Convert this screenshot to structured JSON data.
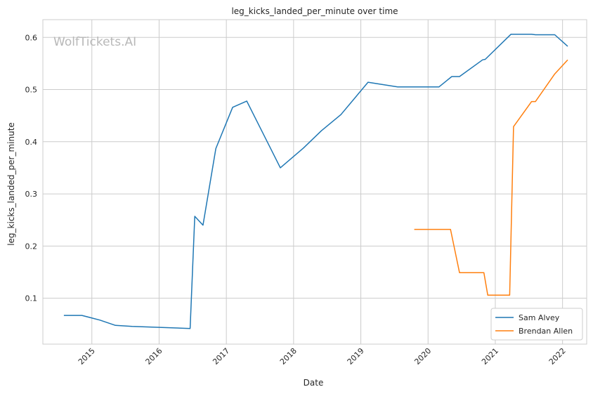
{
  "chart_data": {
    "type": "line",
    "title": "leg_kicks_landed_per_minute over time",
    "xlabel": "Date",
    "ylabel": "leg_kicks_landed_per_minute",
    "watermark": "WolfTickets.AI",
    "grid": true,
    "legend_position": "bottom-right",
    "x_ticks": [
      "2015",
      "2016",
      "2017",
      "2018",
      "2019",
      "2020",
      "2021",
      "2022"
    ],
    "y_ticks": [
      "0.1",
      "0.2",
      "0.3",
      "0.4",
      "0.5",
      "0.6"
    ],
    "xlim": [
      "2014-04-10",
      "2022-05-12"
    ],
    "ylim": [
      0.012,
      0.634
    ],
    "series": [
      {
        "name": "Sam Alvey",
        "color": "#1f77b4",
        "points": [
          [
            "2014-08-02",
            0.067
          ],
          [
            "2014-11-08",
            0.067
          ],
          [
            "2015-02-14",
            0.058
          ],
          [
            "2015-05-09",
            0.048
          ],
          [
            "2015-08-08",
            0.046
          ],
          [
            "2016-06-18",
            0.042
          ],
          [
            "2016-07-13",
            0.257
          ],
          [
            "2016-08-27",
            0.24
          ],
          [
            "2016-11-05",
            0.387
          ],
          [
            "2017-02-04",
            0.466
          ],
          [
            "2017-04-22",
            0.478
          ],
          [
            "2017-10-21",
            0.35
          ],
          [
            "2018-02-24",
            0.388
          ],
          [
            "2018-06-01",
            0.421
          ],
          [
            "2018-09-15",
            0.452
          ],
          [
            "2019-02-09",
            0.514
          ],
          [
            "2019-07-20",
            0.505
          ],
          [
            "2020-02-29",
            0.505
          ],
          [
            "2020-05-09",
            0.525
          ],
          [
            "2020-06-20",
            0.525
          ],
          [
            "2020-10-24",
            0.557
          ],
          [
            "2020-11-07",
            0.558
          ],
          [
            "2021-03-27",
            0.606
          ],
          [
            "2021-07-17",
            0.606
          ],
          [
            "2021-08-07",
            0.605
          ],
          [
            "2021-11-20",
            0.605
          ],
          [
            "2022-01-29",
            0.583
          ]
        ]
      },
      {
        "name": "Brendan Allen",
        "color": "#ff7f0e",
        "points": [
          [
            "2019-10-18",
            0.232
          ],
          [
            "2020-05-02",
            0.232
          ],
          [
            "2020-06-20",
            0.149
          ],
          [
            "2020-10-31",
            0.149
          ],
          [
            "2020-11-21",
            0.106
          ],
          [
            "2021-03-20",
            0.106
          ],
          [
            "2021-04-10",
            0.429
          ],
          [
            "2021-07-17",
            0.477
          ],
          [
            "2021-08-07",
            0.477
          ],
          [
            "2021-11-20",
            0.53
          ],
          [
            "2022-01-29",
            0.557
          ]
        ]
      }
    ]
  }
}
